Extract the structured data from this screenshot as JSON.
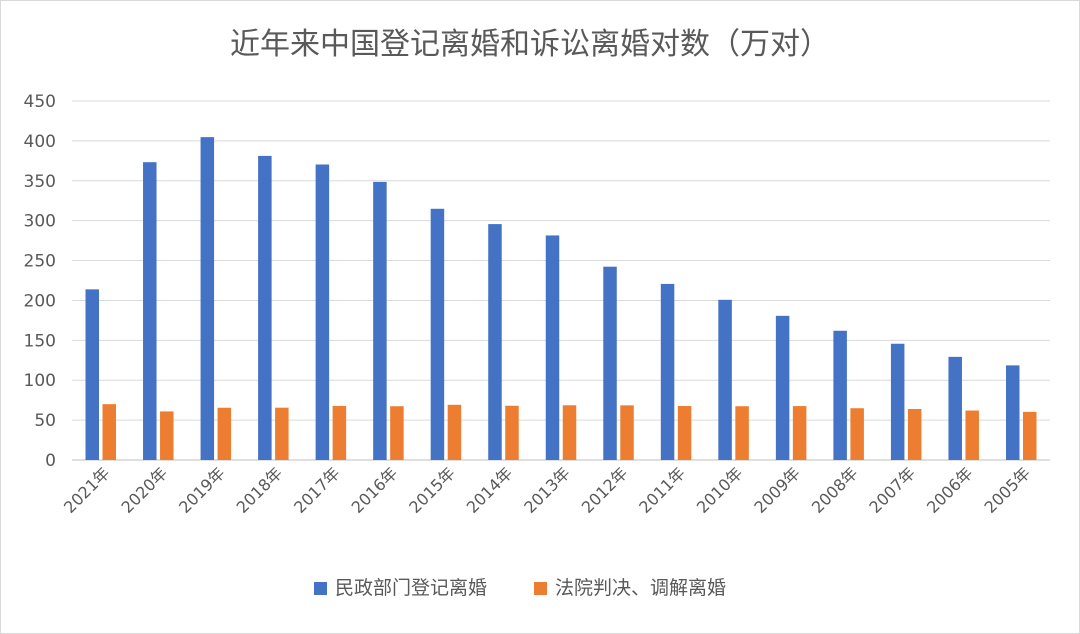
{
  "chart_data": {
    "type": "bar",
    "title": "近年来中国登记离婚和诉讼离婚对数（万对）",
    "categories": [
      "2021年",
      "2020年",
      "2019年",
      "2018年",
      "2017年",
      "2016年",
      "2015年",
      "2014年",
      "2013年",
      "2012年",
      "2011年",
      "2010年",
      "2009年",
      "2008年",
      "2007年",
      "2006年",
      "2005年"
    ],
    "series": [
      {
        "name": "民政部门登记离婚",
        "color": "#4472C4",
        "values": [
          213.9,
          373.3,
          404.7,
          381.2,
          370.4,
          348.6,
          314.9,
          295.7,
          281.5,
          242.3,
          220.7,
          200.8,
          180.7,
          162.0,
          145.7,
          129.3,
          118.6
        ]
      },
      {
        "name": "法院判决、调解离婚",
        "color": "#ED7D31",
        "values": [
          70.0,
          60.9,
          65.5,
          65.6,
          67.8,
          67.4,
          69.2,
          68.0,
          68.6,
          68.5,
          67.7,
          67.4,
          67.6,
          64.9,
          63.9,
          62.0,
          60.3
        ]
      }
    ],
    "ylim": [
      0,
      450
    ],
    "yticks": [
      0,
      50,
      100,
      150,
      200,
      250,
      300,
      350,
      400,
      450
    ],
    "xlabel": "",
    "ylabel": "",
    "grid": true,
    "legend_position": "bottom"
  }
}
